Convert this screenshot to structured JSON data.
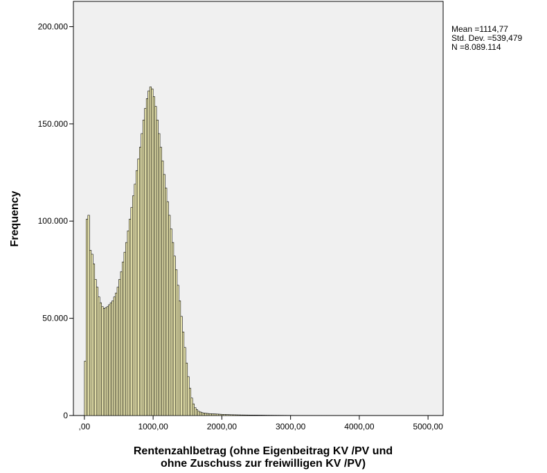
{
  "chart_data": {
    "type": "bar",
    "title": "",
    "xlabel_line1": "Rentenzahlbetrag (ohne Eigenbeitrag KV /PV und",
    "xlabel_line2": "ohne Zuschuss zur freiwilligen KV /PV)",
    "ylabel": "Frequency",
    "xlim": [
      -160,
      5220
    ],
    "ylim": [
      0,
      213000
    ],
    "bin_width": 25,
    "bin_start": 0,
    "x_ticks": [
      0,
      1000,
      2000,
      3000,
      4000,
      5000
    ],
    "x_tick_labels": [
      ",00",
      "1000,00",
      "2000,00",
      "3000,00",
      "4000,00",
      "5000,00"
    ],
    "y_ticks": [
      0,
      50000,
      100000,
      150000,
      200000
    ],
    "y_tick_labels": [
      "0",
      "50.000",
      "100.000",
      "150.000",
      "200.000"
    ],
    "grid": false,
    "values": [
      28000,
      101000,
      103000,
      85000,
      83000,
      78000,
      70000,
      66000,
      61000,
      58000,
      56000,
      55000,
      55500,
      56000,
      57000,
      58000,
      59000,
      61000,
      63000,
      66000,
      70000,
      74000,
      79000,
      84000,
      89000,
      95000,
      101000,
      107000,
      113000,
      119000,
      126000,
      132000,
      138000,
      145000,
      152000,
      158000,
      163000,
      167000,
      169000,
      168000,
      164000,
      159000,
      152000,
      145000,
      138000,
      131000,
      124000,
      117000,
      110000,
      103000,
      96000,
      89000,
      82000,
      75000,
      67000,
      59000,
      51000,
      43000,
      35000,
      27000,
      20000,
      14000,
      9000,
      6000,
      4000,
      3000,
      2200,
      1800,
      1500,
      1300,
      1200,
      1100,
      1000,
      950,
      900,
      850,
      800,
      750,
      700,
      650,
      600,
      560,
      520,
      480,
      450,
      420,
      400,
      380,
      360,
      340,
      320,
      300,
      290,
      280,
      270,
      260,
      250,
      240,
      230,
      220,
      210,
      200,
      190,
      180,
      170,
      160,
      150,
      145,
      140,
      135,
      130,
      125,
      120,
      115,
      110,
      105,
      100,
      95,
      90,
      85,
      80,
      75,
      70,
      68,
      66,
      64,
      62,
      60,
      58,
      56,
      54,
      52,
      50,
      48,
      46,
      44,
      42,
      40,
      38,
      36,
      34,
      32,
      30,
      28,
      26,
      24,
      22,
      20,
      18,
      16,
      14,
      12,
      10,
      9,
      8,
      7,
      6,
      5,
      4,
      3,
      2,
      1,
      1,
      1,
      1,
      1,
      1,
      1,
      1,
      1,
      1,
      1,
      1,
      1,
      1,
      1,
      1,
      1,
      1,
      1,
      1,
      1,
      1,
      1,
      1,
      1,
      1,
      1,
      1,
      1,
      1,
      1,
      1,
      1,
      1,
      1,
      1,
      1,
      1,
      1,
      1,
      1,
      1,
      1,
      1,
      1,
      1,
      1,
      1,
      1,
      1,
      1,
      1,
      1,
      1,
      1
    ],
    "stats": {
      "mean_line": "Mean =1114,77",
      "sd_line": "Std. Dev. =539,479",
      "n_line": "N =8.089.114"
    },
    "colors": {
      "plot_background": "#f0f0f0",
      "bar_fill": "#f3efb5",
      "bar_outline": "#000000"
    }
  }
}
